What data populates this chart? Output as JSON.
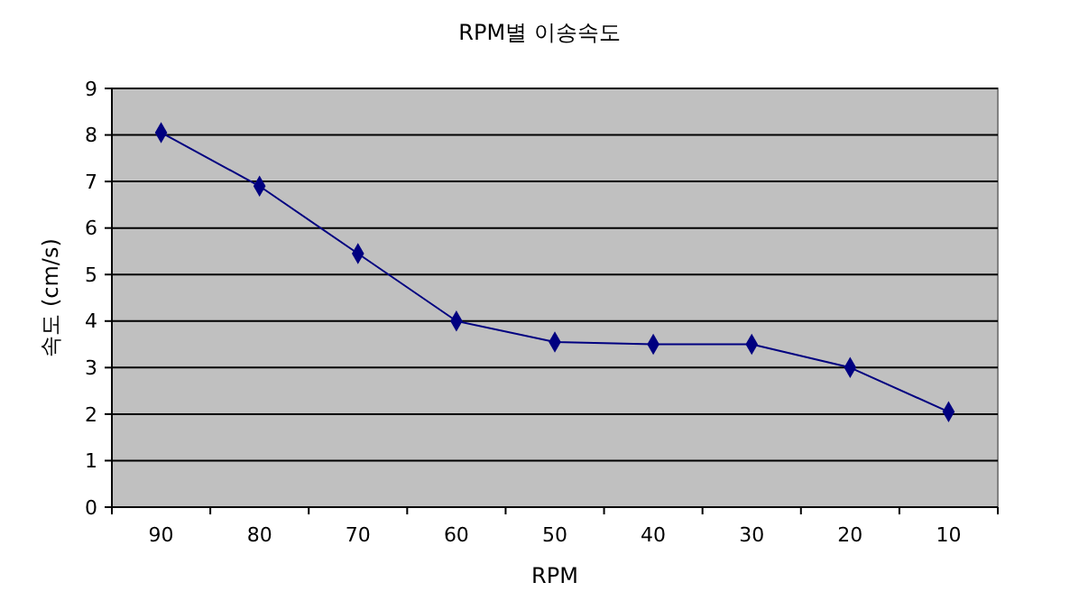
{
  "chart_data": {
    "type": "line",
    "title": "RPM별 이송속도",
    "xlabel": "RPM",
    "ylabel": "속도 (cm/s)",
    "categories": [
      "90",
      "80",
      "70",
      "60",
      "50",
      "40",
      "30",
      "20",
      "10"
    ],
    "series": [
      {
        "color": "#000080",
        "values": [
          8.05,
          6.9,
          5.45,
          4.0,
          3.55,
          3.5,
          3.5,
          3.0,
          2.05
        ]
      }
    ],
    "ylim": [
      0,
      9
    ],
    "yticks": [
      0,
      1,
      2,
      3,
      4,
      5,
      6,
      7,
      8,
      9
    ],
    "grid": "y",
    "marker": "diamond",
    "line_style": "solid"
  }
}
